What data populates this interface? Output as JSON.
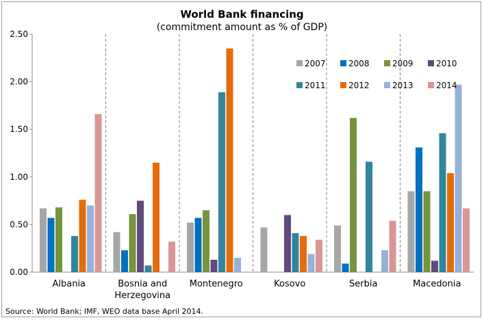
{
  "chart_data": {
    "type": "bar",
    "title": "World Bank financing",
    "subtitle": "(commitment amount as % of GDP)",
    "source": "Source: World Bank; IMF, WEO data base April 2014.",
    "categories": [
      "Albania",
      "Bosnia and Herzegovina",
      "Montenegro",
      "Kosovo",
      "Serbia",
      "Macedonia"
    ],
    "category_lines": [
      [
        "Albania"
      ],
      [
        "Bosnia and",
        "Herzegovina"
      ],
      [
        "Montenegro"
      ],
      [
        "Kosovo"
      ],
      [
        "Serbia"
      ],
      [
        "Macedonia"
      ]
    ],
    "ylim": [
      0,
      2.5
    ],
    "yticks": [
      "0.00",
      "0.50",
      "1.00",
      "1.50",
      "2.00",
      "2.50"
    ],
    "ytick_values": [
      0,
      0.5,
      1.0,
      1.5,
      2.0,
      2.5
    ],
    "grid": false,
    "separators": "dashed",
    "legend_position": "top-right",
    "series": [
      {
        "name": "2007",
        "color": "#a6a6a6",
        "values": [
          0.67,
          0.42,
          0.52,
          0.47,
          0.49,
          0.85
        ]
      },
      {
        "name": "2008",
        "color": "#0070c0",
        "values": [
          0.57,
          0.23,
          0.57,
          0.0,
          0.09,
          1.31
        ]
      },
      {
        "name": "2009",
        "color": "#77933c",
        "values": [
          0.68,
          0.61,
          0.65,
          0.0,
          1.62,
          0.85
        ]
      },
      {
        "name": "2010",
        "color": "#604a7b",
        "values": [
          0.0,
          0.75,
          0.13,
          0.6,
          0.0,
          0.12
        ]
      },
      {
        "name": "2011",
        "color": "#31859c",
        "values": [
          0.38,
          0.07,
          1.89,
          0.41,
          1.16,
          1.46
        ]
      },
      {
        "name": "2012",
        "color": "#e46c0a",
        "values": [
          0.76,
          1.15,
          2.35,
          0.38,
          0.0,
          1.04
        ]
      },
      {
        "name": "2013",
        "color": "#95b3d7",
        "values": [
          0.7,
          0.0,
          0.15,
          0.19,
          0.23,
          1.97
        ]
      },
      {
        "name": "2014",
        "color": "#d99694",
        "values": [
          1.66,
          0.32,
          0.0,
          0.34,
          0.54,
          0.67
        ]
      }
    ]
  }
}
